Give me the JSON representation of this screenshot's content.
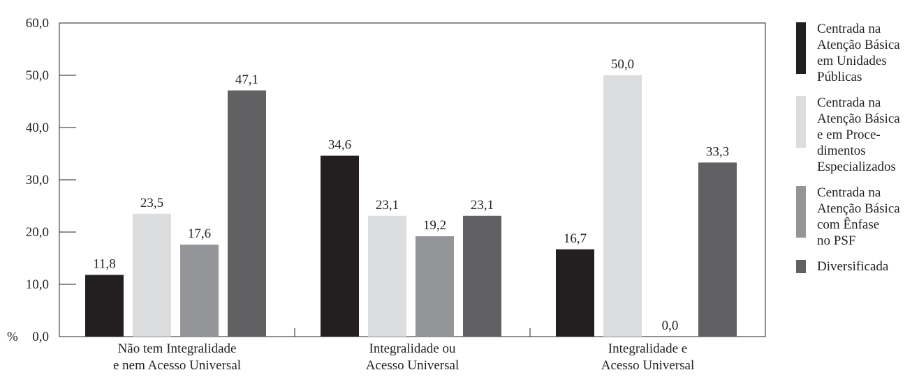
{
  "chart_data": {
    "type": "bar",
    "y_unit_label": "%",
    "ylim": [
      0,
      60
    ],
    "yticks": [
      "0,0",
      "10,0",
      "20,0",
      "30,0",
      "40,0",
      "50,0",
      "60,0"
    ],
    "categories": [
      "Não tem Integralidade\ne nem Acesso Universal",
      "Integralidade ou\nAcesso Universal",
      "Integralidade e\nAcesso Universal"
    ],
    "series": [
      {
        "name": "Centrada na\nAtenção Básica\nem Unidades\nPúblicas",
        "color": "#231f20",
        "values": [
          11.8,
          34.6,
          16.7
        ],
        "labels": [
          "11,8",
          "34,6",
          "16,7"
        ]
      },
      {
        "name": "Centrada na\nAtenção Básica\ne em Proce-\ndimentos\nEspecializados",
        "color": "#dcdddf",
        "values": [
          23.5,
          23.1,
          50.0
        ],
        "labels": [
          "23,5",
          "23,1",
          "50,0"
        ]
      },
      {
        "name": "Centrada na\nAtenção Básica\ncom Ênfase\nno PSF",
        "color": "#939598",
        "values": [
          17.6,
          19.2,
          0.0
        ],
        "labels": [
          "17,6",
          "19,2",
          "0,0"
        ]
      },
      {
        "name": "Diversificada",
        "color": "#616163",
        "values": [
          47.1,
          23.1,
          33.3
        ],
        "labels": [
          "47,1",
          "23,1",
          "33,3"
        ]
      }
    ],
    "grid": false,
    "legend_position": "right"
  }
}
